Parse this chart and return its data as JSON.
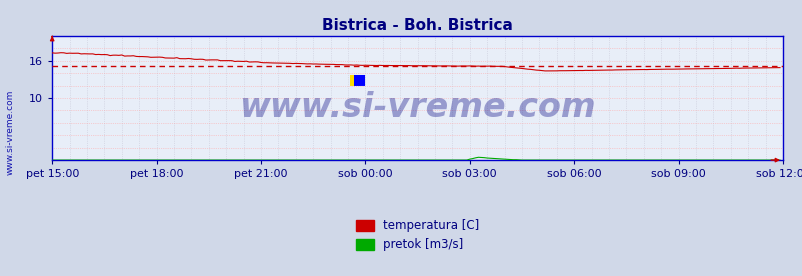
{
  "title": "Bistrica - Boh. Bistrica",
  "title_color": "#000080",
  "title_fontsize": 11,
  "bg_color": "#d0d8e8",
  "plot_bg_color": "#e8eef8",
  "grid_color_v": "#c8c8d8",
  "grid_color_h": "#ffaaaa",
  "axis_color": "#0000cc",
  "watermark_text": "www.si-vreme.com",
  "watermark_color": "#000080",
  "watermark_fontsize": 24,
  "watermark_alpha": 0.35,
  "tick_color": "#000080",
  "tick_fontsize": 8,
  "ylim": [
    0,
    20
  ],
  "yticks": [
    10,
    16
  ],
  "avg_line_value": 15.2,
  "avg_line_color": "#cc0000",
  "temp_color": "#cc0000",
  "flow_color": "#00aa00",
  "legend_items": [
    {
      "label": "temperatura [C]",
      "color": "#cc0000"
    },
    {
      "label": "pretok [m3/s]",
      "color": "#00aa00"
    }
  ],
  "x_tick_labels": [
    "pet 15:00",
    "pet 18:00",
    "pet 21:00",
    "sob 00:00",
    "sob 03:00",
    "sob 06:00",
    "sob 09:00",
    "sob 12:00"
  ],
  "x_tick_positions": [
    0,
    36,
    72,
    108,
    144,
    180,
    216,
    252
  ],
  "total_points": 252,
  "sidebar_text": "www.si-vreme.com",
  "sidebar_color": "#0000aa",
  "n_vert_grid": 36,
  "n_horiz_grid": 20
}
